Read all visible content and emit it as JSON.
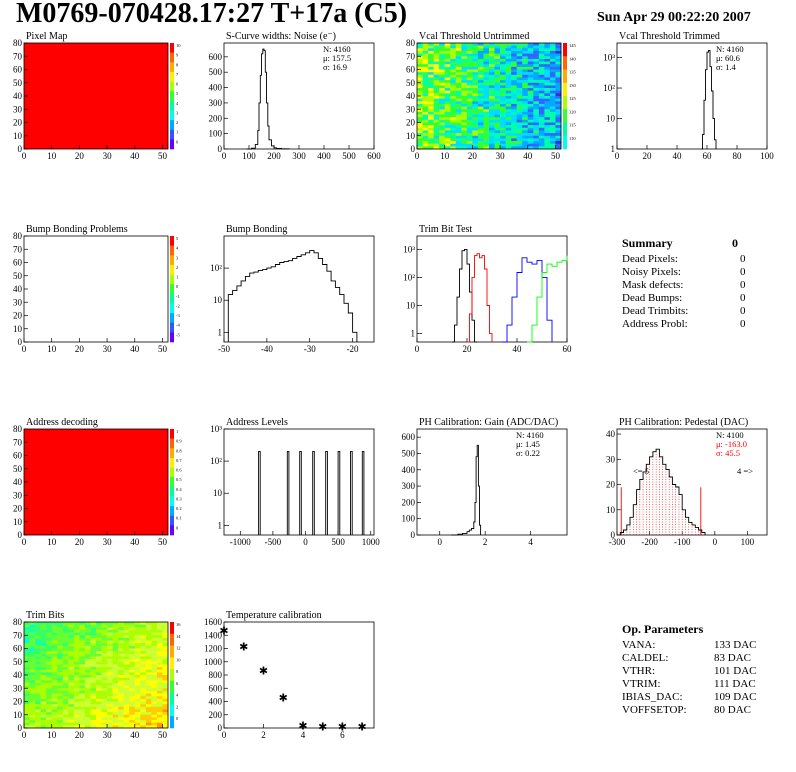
{
  "header": {
    "title": "M0769-070428.17:27 T+17a (C5)",
    "date": "Sun Apr 29 00:22:20 2007"
  },
  "colors": {
    "red_fill": "#ff0000",
    "line": "#000000",
    "red_line": "#ff0000",
    "blue_line": "#0000ff",
    "green_line": "#00ff00"
  },
  "chart_data": [
    {
      "id": "pixel_map",
      "type": "heatmap",
      "title": "Pixel Map",
      "xlim": [
        0,
        52
      ],
      "ylim": [
        0,
        80
      ],
      "xticks": [
        0,
        10,
        20,
        30,
        40,
        50
      ],
      "yticks": [
        0,
        10,
        20,
        30,
        40,
        50,
        60,
        70,
        80
      ],
      "zlim": [
        0,
        10
      ],
      "ztick_labels": [
        "10",
        "9",
        "8",
        "7",
        "6",
        "5",
        "4",
        "3",
        "2",
        "1",
        "0"
      ],
      "fill": "uniform-max"
    },
    {
      "id": "scurve",
      "type": "line",
      "title": "S-Curve widths: Noise (e⁻)",
      "xlim": [
        0,
        600
      ],
      "ylim": [
        0,
        690
      ],
      "xticks": [
        0,
        100,
        200,
        300,
        400,
        500,
        600
      ],
      "yticks": [
        0,
        100,
        200,
        300,
        400,
        500,
        600
      ],
      "stats": [
        "N: 4160",
        "μ: 157.5",
        "σ: 16.9"
      ],
      "x": [
        90,
        110,
        125,
        135,
        140,
        145,
        150,
        155,
        160,
        165,
        170,
        175,
        180,
        190,
        200,
        210,
        230,
        260
      ],
      "y": [
        0,
        5,
        30,
        120,
        300,
        480,
        620,
        650,
        640,
        500,
        300,
        150,
        60,
        20,
        8,
        3,
        1,
        0
      ]
    },
    {
      "id": "vcal_untrimmed",
      "type": "heatmap",
      "title": "Vcal Threshold Untrimmed",
      "xlim": [
        0,
        52
      ],
      "ylim": [
        0,
        80
      ],
      "xticks": [
        0,
        10,
        20,
        30,
        40,
        50
      ],
      "yticks": [
        0,
        10,
        20,
        30,
        40,
        50,
        60,
        70,
        80
      ],
      "ztick_labels": [
        "145",
        "140",
        "135",
        "130",
        "125",
        "120",
        "115",
        "110"
      ],
      "fill": "noise-gradient"
    },
    {
      "id": "vcal_trimmed",
      "type": "line",
      "title": "Vcal Threshold Trimmed",
      "xlim": [
        0,
        100
      ],
      "ylog": true,
      "ylim": [
        1,
        3000
      ],
      "xticks": [
        0,
        20,
        40,
        60,
        80,
        100
      ],
      "ytick_labels": [
        "1",
        "10",
        "10²",
        "10³"
      ],
      "stats": [
        "N: 4160",
        "μ: 60.6",
        "σ:  1.4"
      ],
      "x": [
        56,
        57,
        58,
        59,
        60,
        61,
        62,
        63,
        64,
        65,
        66
      ],
      "y": [
        1,
        3,
        40,
        400,
        1500,
        1700,
        500,
        80,
        10,
        2,
        1
      ]
    },
    {
      "id": "bump_problems",
      "type": "heatmap",
      "title": "Bump Bonding Problems",
      "xlim": [
        0,
        52
      ],
      "ylim": [
        0,
        80
      ],
      "xticks": [
        0,
        10,
        20,
        30,
        40,
        50
      ],
      "yticks": [
        0,
        10,
        20,
        30,
        40,
        50,
        60,
        70,
        80
      ],
      "ztick_labels": [
        "5",
        "4",
        "3",
        "2",
        "1",
        "0",
        "-1",
        "-2",
        "-3",
        "-4",
        "-5"
      ],
      "fill": "empty"
    },
    {
      "id": "bump_bonding",
      "type": "line",
      "title": "Bump Bonding",
      "xlim": [
        -50,
        -15
      ],
      "ylog": true,
      "ylim": [
        0.5,
        1000
      ],
      "xticks": [
        -50,
        -40,
        -30,
        -20
      ],
      "ytick_labels": [
        "1",
        "10",
        "10²"
      ],
      "x": [
        -49,
        -48,
        -47,
        -46,
        -45,
        -44,
        -43,
        -42,
        -41,
        -40,
        -39,
        -38,
        -37,
        -36,
        -35,
        -34,
        -33,
        -32,
        -31,
        -30,
        -29,
        -28,
        -27,
        -26,
        -25,
        -24,
        -23,
        -22,
        -21,
        -20,
        -19
      ],
      "y": [
        15,
        20,
        28,
        40,
        55,
        70,
        75,
        85,
        90,
        100,
        110,
        130,
        150,
        160,
        170,
        200,
        230,
        260,
        300,
        350,
        300,
        200,
        130,
        80,
        40,
        25,
        15,
        8,
        4,
        1,
        0.5
      ]
    },
    {
      "id": "trim_bit_test",
      "type": "line",
      "title": "Trim Bit Test",
      "xlim": [
        0,
        60
      ],
      "ylog": true,
      "ylim": [
        0.5,
        3000
      ],
      "xticks": [
        0,
        20,
        40,
        60
      ],
      "ytick_labels": [
        "1",
        "10",
        "10²",
        "10³"
      ],
      "series": [
        {
          "color": "#000000",
          "x": [
            14,
            15,
            16,
            17,
            18,
            19,
            20,
            21,
            22,
            23,
            24
          ],
          "y": [
            0.5,
            2,
            20,
            200,
            900,
            1000,
            300,
            30,
            3,
            0.5,
            0.5
          ]
        },
        {
          "color": "#ff0000",
          "x": [
            20,
            21,
            22,
            23,
            24,
            25,
            26,
            27,
            28,
            29,
            30
          ],
          "y": [
            0.5,
            5,
            100,
            600,
            700,
            500,
            600,
            200,
            10,
            1,
            0.5
          ]
        },
        {
          "color": "#0000ff",
          "x": [
            34,
            36,
            38,
            40,
            42,
            44,
            46,
            48,
            50,
            52,
            54
          ],
          "y": [
            0.5,
            2,
            20,
            150,
            500,
            350,
            300,
            400,
            100,
            3,
            0.5
          ]
        },
        {
          "color": "#00ff00",
          "x": [
            44,
            46,
            48,
            50,
            52,
            54,
            56,
            58,
            60
          ],
          "y": [
            0.5,
            2,
            20,
            150,
            300,
            250,
            350,
            400,
            600
          ]
        }
      ]
    },
    {
      "id": "address_decoding",
      "type": "heatmap",
      "title": "Address decoding",
      "xlim": [
        0,
        52
      ],
      "ylim": [
        0,
        80
      ],
      "xticks": [
        0,
        10,
        20,
        30,
        40,
        50
      ],
      "yticks": [
        0,
        10,
        20,
        30,
        40,
        50,
        60,
        70,
        80
      ],
      "ztick_labels": [
        "1",
        "0.9",
        "0.8",
        "0.7",
        "0.6",
        "0.5",
        "0.4",
        "0.3",
        "0.2",
        "0.1",
        "0"
      ],
      "fill": "uniform-max"
    },
    {
      "id": "address_levels",
      "type": "line",
      "title": "Address Levels",
      "xlim": [
        -1250,
        1050
      ],
      "ylog": true,
      "ylim": [
        0.5,
        1000
      ],
      "xticks": [
        -1000,
        -500,
        0,
        500,
        1000
      ],
      "ytick_labels": [
        "1",
        "10",
        "10²",
        "10³"
      ],
      "peaks": [
        -720,
        -280,
        -90,
        110,
        310,
        500,
        690,
        870
      ],
      "peak_heights": [
        200,
        200,
        200,
        200,
        200,
        200,
        200,
        200
      ]
    },
    {
      "id": "ph_gain",
      "type": "line",
      "title": "PH Calibration: Gain (ADC/DAC)",
      "xlim": [
        -1,
        5.6
      ],
      "ylim": [
        0,
        650
      ],
      "xticks": [
        0,
        2,
        4
      ],
      "yticks": [
        0,
        100,
        200,
        300,
        400,
        500,
        600
      ],
      "stats": [
        "N: 4160",
        "μ: 1.45",
        "σ: 0.22"
      ],
      "x": [
        0.5,
        0.8,
        1.0,
        1.2,
        1.3,
        1.4,
        1.5,
        1.55,
        1.6,
        1.65,
        1.7,
        1.75,
        1.8
      ],
      "y": [
        0,
        5,
        10,
        20,
        30,
        40,
        80,
        200,
        480,
        550,
        300,
        60,
        0
      ]
    },
    {
      "id": "ph_pedestal",
      "type": "line",
      "title": "PH Calibration: Pedestal (DAC)",
      "xlim": [
        -300,
        160
      ],
      "ylim": [
        0,
        42
      ],
      "xticks": [
        -300,
        -200,
        -100,
        0,
        100
      ],
      "yticks": [
        0,
        10,
        20,
        30,
        40
      ],
      "stats": [
        "N: 4100",
        "μ: -163.0",
        "σ: 45.5"
      ],
      "under_label": "<= 5",
      "over_label": "4 =>",
      "markers": [
        -287,
        -43
      ],
      "x": [
        -300,
        -290,
        -280,
        -270,
        -260,
        -250,
        -240,
        -230,
        -220,
        -210,
        -200,
        -190,
        -180,
        -170,
        -160,
        -150,
        -140,
        -130,
        -120,
        -110,
        -100,
        -90,
        -80,
        -70,
        -60,
        -50,
        -40,
        -30
      ],
      "y": [
        0,
        1,
        2,
        4,
        7,
        12,
        18,
        22,
        25,
        28,
        31,
        33,
        34,
        31,
        28,
        26,
        23,
        20,
        19,
        16,
        10,
        7,
        5,
        4,
        3,
        2,
        1,
        0
      ]
    },
    {
      "id": "trim_bits",
      "type": "heatmap",
      "title": "Trim Bits",
      "xlim": [
        0,
        52
      ],
      "ylim": [
        0,
        80
      ],
      "xticks": [
        0,
        10,
        20,
        30,
        40,
        50
      ],
      "yticks": [
        0,
        10,
        20,
        30,
        40,
        50,
        60,
        70,
        80
      ],
      "ztick_labels": [
        "16",
        "14",
        "12",
        "10",
        "8",
        "6",
        "4",
        "2",
        "0"
      ],
      "fill": "trim-gradient"
    },
    {
      "id": "temperature",
      "type": "scatter",
      "title": "Temperature calibration",
      "xlim": [
        0,
        7.6
      ],
      "ylim": [
        0,
        1600
      ],
      "xticks": [
        0,
        2,
        4,
        6
      ],
      "yticks": [
        0,
        200,
        400,
        600,
        800,
        1000,
        1200,
        1400,
        1600
      ],
      "x": [
        0,
        1,
        2,
        3,
        4,
        5,
        6,
        7
      ],
      "y": [
        1470,
        1230,
        870,
        460,
        40,
        20,
        20,
        20
      ]
    }
  ],
  "summary": {
    "title": "Summary",
    "value": "0",
    "rows": [
      {
        "label": "Dead Pixels:",
        "value": "0"
      },
      {
        "label": "Noisy Pixels:",
        "value": "0"
      },
      {
        "label": "Mask defects:",
        "value": "0"
      },
      {
        "label": "Dead Bumps:",
        "value": "0"
      },
      {
        "label": "Dead Trimbits:",
        "value": "0"
      },
      {
        "label": "Address Probl:",
        "value": "0"
      }
    ]
  },
  "op_params": {
    "title": "Op. Parameters",
    "rows": [
      {
        "label": "VANA:",
        "value": "133 DAC"
      },
      {
        "label": "CALDEL:",
        "value": "83 DAC"
      },
      {
        "label": "VTHR:",
        "value": "101 DAC"
      },
      {
        "label": "VTRIM:",
        "value": "111 DAC"
      },
      {
        "label": "IBIAS_DAC:",
        "value": "109 DAC"
      },
      {
        "label": "VOFFSETOP:",
        "value": "80 DAC"
      }
    ]
  }
}
